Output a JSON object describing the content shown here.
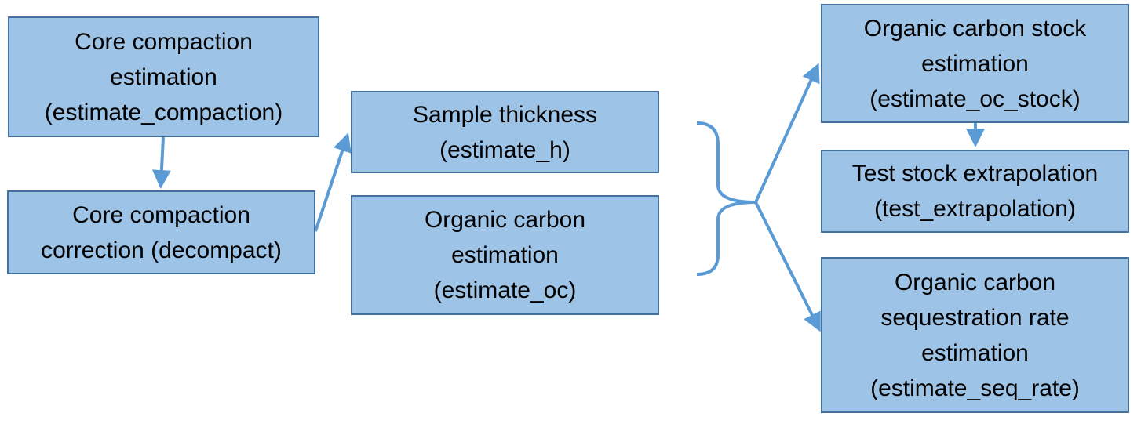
{
  "colors": {
    "box_fill": "#9dc3e6",
    "box_border": "#41719c",
    "arrow": "#5b9bd5",
    "text": "#000000"
  },
  "nodes": {
    "core_compaction_estimation": {
      "lines": [
        "Core compaction",
        "estimation",
        "(estimate_compaction)"
      ]
    },
    "core_compaction_correction": {
      "lines": [
        "Core compaction",
        "correction (decompact)"
      ]
    },
    "sample_thickness": {
      "lines": [
        "Sample thickness",
        "(estimate_h)"
      ]
    },
    "organic_carbon_estimation": {
      "lines": [
        "Organic carbon",
        "estimation",
        "(estimate_oc)"
      ]
    },
    "organic_carbon_stock_estimation": {
      "lines": [
        "Organic carbon stock",
        "estimation",
        "(estimate_oc_stock)"
      ]
    },
    "test_stock_extrapolation": {
      "lines": [
        "Test stock extrapolation",
        "(test_extrapolation)"
      ]
    },
    "sequestration_rate_estimation": {
      "lines": [
        "Organic carbon",
        "sequestration rate",
        "estimation",
        "(estimate_seq_rate)"
      ]
    }
  }
}
